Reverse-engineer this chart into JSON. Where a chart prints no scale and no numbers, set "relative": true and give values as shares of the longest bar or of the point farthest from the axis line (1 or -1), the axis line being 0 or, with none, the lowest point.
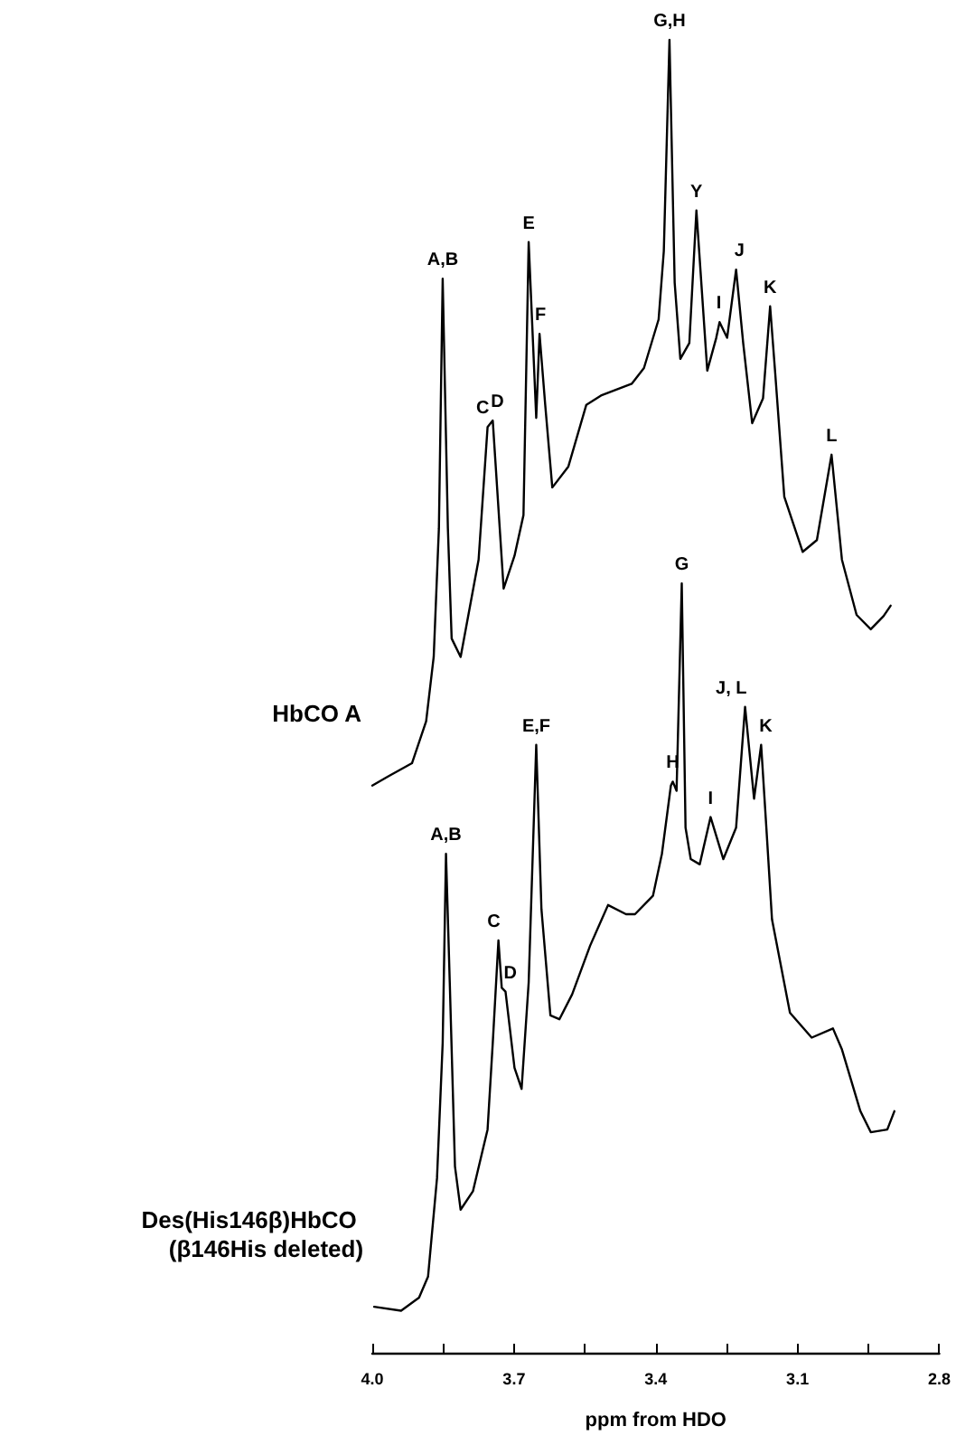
{
  "chart_data": {
    "type": "line",
    "relative": true,
    "xlabel": "ppm from HDO",
    "xlim": [
      4.0,
      2.8
    ],
    "xticks": [
      {
        "value": 4.0,
        "label": "4.0"
      },
      {
        "value": 3.85,
        "label": null
      },
      {
        "value": 3.7,
        "label": "3.7"
      },
      {
        "value": 3.55,
        "label": null
      },
      {
        "value": 3.4,
        "label": "3.4"
      },
      {
        "value": 3.25,
        "label": null
      },
      {
        "value": 3.1,
        "label": "3.1"
      },
      {
        "value": 2.95,
        "label": null
      },
      {
        "value": 2.8,
        "label": "2.8"
      }
    ],
    "legend": false,
    "grid": false,
    "marker": "none",
    "series": [
      {
        "name": "HbCO A",
        "color": "#000000",
        "x": [
          4.0,
          3.966,
          3.916,
          3.886,
          3.87,
          3.859,
          3.851,
          3.84,
          3.832,
          3.813,
          3.775,
          3.756,
          3.745,
          3.722,
          3.699,
          3.68,
          3.669,
          3.653,
          3.646,
          3.634,
          3.619,
          3.585,
          3.547,
          3.516,
          3.451,
          3.425,
          3.394,
          3.383,
          3.371,
          3.36,
          3.348,
          3.329,
          3.314,
          3.291,
          3.272,
          3.265,
          3.249,
          3.23,
          3.215,
          3.196,
          3.173,
          3.158,
          3.147,
          3.128,
          3.089,
          3.059,
          3.028,
          3.006,
          2.975,
          2.945,
          2.918,
          2.903
        ],
        "values": [
          0.432,
          0.439,
          0.449,
          0.481,
          0.53,
          0.628,
          0.818,
          0.628,
          0.544,
          0.53,
          0.604,
          0.705,
          0.71,
          0.582,
          0.607,
          0.638,
          0.846,
          0.712,
          0.776,
          0.722,
          0.659,
          0.675,
          0.722,
          0.729,
          0.738,
          0.75,
          0.787,
          0.839,
          1.0,
          0.815,
          0.757,
          0.769,
          0.87,
          0.748,
          0.773,
          0.785,
          0.773,
          0.825,
          0.769,
          0.708,
          0.727,
          0.797,
          0.745,
          0.652,
          0.61,
          0.619,
          0.684,
          0.604,
          0.562,
          0.551,
          0.561,
          0.569
        ]
      },
      {
        "name": "Des(His146β)HbCO (β146His deleted)",
        "color": "#000000",
        "x": [
          3.996,
          3.939,
          3.901,
          3.882,
          3.863,
          3.851,
          3.844,
          3.836,
          3.825,
          3.813,
          3.787,
          3.756,
          3.745,
          3.733,
          3.726,
          3.718,
          3.699,
          3.684,
          3.669,
          3.653,
          3.642,
          3.623,
          3.604,
          3.577,
          3.539,
          3.501,
          3.463,
          3.444,
          3.406,
          3.387,
          3.368,
          3.364,
          3.356,
          3.345,
          3.337,
          3.326,
          3.307,
          3.284,
          3.257,
          3.23,
          3.211,
          3.192,
          3.177,
          3.166,
          3.154,
          3.116,
          3.07,
          3.025,
          3.006,
          2.967,
          2.945,
          2.91,
          2.895
        ],
        "values": [
          0.035,
          0.032,
          0.042,
          0.058,
          0.133,
          0.236,
          0.38,
          0.282,
          0.142,
          0.109,
          0.123,
          0.17,
          0.236,
          0.314,
          0.278,
          0.275,
          0.217,
          0.201,
          0.282,
          0.463,
          0.338,
          0.257,
          0.254,
          0.273,
          0.31,
          0.341,
          0.334,
          0.334,
          0.348,
          0.38,
          0.432,
          0.435,
          0.428,
          0.586,
          0.4,
          0.376,
          0.372,
          0.408,
          0.376,
          0.4,
          0.492,
          0.422,
          0.463,
          0.4,
          0.33,
          0.259,
          0.24,
          0.247,
          0.231,
          0.184,
          0.168,
          0.17,
          0.184
        ]
      }
    ],
    "annotations": [
      {
        "text": "A,B",
        "x": 3.851,
        "y": 0.818
      },
      {
        "text": "C",
        "x": 3.756,
        "y": 0.705
      },
      {
        "text": "D",
        "x": 3.745,
        "y": 0.71
      },
      {
        "text": "E",
        "x": 3.669,
        "y": 0.846
      },
      {
        "text": "F",
        "x": 3.644,
        "y": 0.776
      },
      {
        "text": "G,H",
        "x": 3.371,
        "y": 1.0
      },
      {
        "text": "Y",
        "x": 3.314,
        "y": 0.87
      },
      {
        "text": "I",
        "x": 3.265,
        "y": 0.785
      },
      {
        "text": "J",
        "x": 3.23,
        "y": 0.825
      },
      {
        "text": "K",
        "x": 3.158,
        "y": 0.797
      },
      {
        "text": "L",
        "x": 3.028,
        "y": 0.684
      },
      {
        "text": "A,B",
        "x": 3.844,
        "y": 0.38
      },
      {
        "text": "C",
        "x": 3.733,
        "y": 0.314
      },
      {
        "text": "D",
        "x": 3.718,
        "y": 0.275
      },
      {
        "text": "E,F",
        "x": 3.653,
        "y": 0.463
      },
      {
        "text": "H",
        "x": 3.364,
        "y": 0.435
      },
      {
        "text": "G",
        "x": 3.345,
        "y": 0.586
      },
      {
        "text": "I",
        "x": 3.284,
        "y": 0.408
      },
      {
        "text": "J, L",
        "x": 3.211,
        "y": 0.492
      },
      {
        "text": "K",
        "x": 3.177,
        "y": 0.463
      }
    ]
  }
}
